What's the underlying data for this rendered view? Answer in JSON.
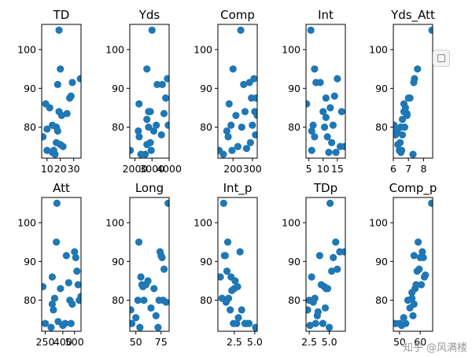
{
  "colors": {
    "marker": "#1f77b4",
    "axis": "#000000",
    "background": "#ffffff"
  },
  "watermark": {
    "text": "知乎 @风满楼",
    "icon": "zhihu-copy-icon"
  },
  "chart_data": [
    {
      "type": "scatter",
      "title": "TD",
      "xlabel": "",
      "ylabel": "",
      "xlim": [
        6.0,
        35.5
      ],
      "ylim": [
        72.0,
        106.5
      ],
      "xticks": [
        10,
        20,
        30
      ],
      "xtick_labels": [
        "10",
        "20",
        "30"
      ],
      "yticks": [
        80,
        90,
        100
      ],
      "ytick_labels": [
        "80",
        "90",
        "100"
      ],
      "x": [
        7,
        9,
        10,
        10,
        12,
        14,
        14,
        15,
        16,
        17,
        17,
        18,
        18,
        19,
        19,
        20,
        20,
        21,
        22,
        25,
        27,
        28,
        29,
        35
      ],
      "y": [
        77.5,
        86,
        74,
        79.5,
        85,
        73.5,
        80.5,
        74,
        73,
        80,
        76,
        91,
        79,
        105,
        84,
        95,
        75.5,
        83,
        75,
        83.5,
        87.5,
        88,
        91.5,
        92.5
      ]
    },
    {
      "type": "scatter",
      "title": "Yds",
      "xlabel": "",
      "ylabel": "",
      "xlim": [
        1700,
        4000
      ],
      "ylim": [
        72.0,
        106.5
      ],
      "xticks": [
        2000,
        3000,
        4000
      ],
      "xtick_labels": [
        "2000",
        "3000",
        "4000"
      ],
      "yticks": [
        80,
        90,
        100
      ],
      "ytick_labels": [
        "80",
        "90",
        "100"
      ],
      "x": [
        1730,
        2240,
        2200,
        2350,
        2250,
        2600,
        2700,
        2700,
        2800,
        2900,
        2950,
        3000,
        3250,
        3300,
        3550,
        3700,
        3800,
        3900,
        3950,
        2900,
        2700,
        2800,
        3600,
        3100
      ],
      "y": [
        74,
        86,
        79,
        73,
        77.5,
        73,
        75.5,
        95,
        80,
        84,
        74,
        105,
        80.5,
        91,
        78,
        83.5,
        87.5,
        92.5,
        80.5,
        76,
        82,
        84,
        91,
        79
      ]
    },
    {
      "type": "scatter",
      "title": "Comp",
      "xlabel": "",
      "ylabel": "",
      "xlim": [
        122,
        325
      ],
      "ylim": [
        72.0,
        106.5
      ],
      "xticks": [
        200,
        300
      ],
      "xtick_labels": [
        "200",
        "300"
      ],
      "yticks": [
        80,
        90,
        100
      ],
      "ytick_labels": [
        "80",
        "90",
        "100"
      ],
      "x": [
        128,
        150,
        168,
        175,
        180,
        190,
        195,
        200,
        215,
        225,
        240,
        255,
        262,
        270,
        285,
        295,
        300,
        308,
        312,
        316,
        320,
        325,
        245,
        290
      ],
      "y": [
        74,
        73,
        79,
        77.5,
        86,
        80.5,
        74,
        95,
        83,
        75,
        105,
        91,
        84,
        74.5,
        91.5,
        87.5,
        80.5,
        92.5,
        84,
        78,
        87.5,
        83,
        80,
        76
      ]
    },
    {
      "type": "scatter",
      "title": "Int",
      "xlabel": "",
      "ylabel": "",
      "xlim": [
        4.0,
        17.8
      ],
      "ylim": [
        72.0,
        106.5
      ],
      "xticks": [
        5,
        10,
        15
      ],
      "xtick_labels": [
        "5",
        "10",
        "15"
      ],
      "yticks": [
        80,
        90,
        100
      ],
      "ytick_labels": [
        "80",
        "90",
        "100"
      ],
      "x": [
        4.2,
        5.7,
        6,
        6,
        6.5,
        7,
        7,
        7.5,
        9,
        10,
        10.5,
        11,
        11,
        11.5,
        12,
        13,
        13.5,
        14,
        14.5,
        15,
        16,
        16.5,
        17.5,
        12.5
      ],
      "y": [
        86,
        105,
        74,
        79,
        80.5,
        95,
        77.5,
        91.5,
        91.5,
        84,
        80,
        87.5,
        82.5,
        77.5,
        73.5,
        76,
        80.5,
        88,
        73.5,
        92.5,
        75,
        84,
        75,
        85
      ]
    },
    {
      "type": "scatter",
      "title": "Yds_Att",
      "xlabel": "",
      "ylabel": "",
      "xlim": [
        6.0,
        8.6
      ],
      "ylim": [
        72.0,
        106.5
      ],
      "xticks": [
        6,
        7,
        8
      ],
      "xtick_labels": [
        "6",
        "7",
        "8"
      ],
      "yticks": [
        80,
        90,
        100
      ],
      "ytick_labels": [
        "80",
        "90",
        "100"
      ],
      "x": [
        6.05,
        6.15,
        6.25,
        6.3,
        6.4,
        6.5,
        6.5,
        6.6,
        6.6,
        6.7,
        6.7,
        6.75,
        6.8,
        6.9,
        7.0,
        7.1,
        7.3,
        7.35,
        7.4,
        7.6,
        8.55,
        6.9,
        6.45,
        6.55
      ],
      "y": [
        80.5,
        78,
        79,
        75.5,
        74,
        73.5,
        80,
        78,
        82,
        84,
        86,
        80,
        85,
        83,
        87.5,
        87.5,
        73,
        91.5,
        92.5,
        95,
        105,
        83.5,
        76,
        74
      ]
    },
    {
      "type": "scatter",
      "title": "Att",
      "xlabel": "",
      "ylabel": "",
      "xlim": [
        220,
        555
      ],
      "ylim": [
        72.0,
        106.5
      ],
      "xticks": [
        250,
        400,
        500
      ],
      "xtick_labels": [
        "250",
        "400",
        "500"
      ],
      "yticks": [
        80,
        90,
        100
      ],
      "ytick_labels": [
        "80",
        "90",
        "100"
      ],
      "x": [
        230,
        250,
        300,
        310,
        310,
        320,
        330,
        345,
        350,
        360,
        380,
        400,
        420,
        430,
        450,
        460,
        470,
        500,
        510,
        520,
        530,
        540,
        555,
        480
      ],
      "y": [
        83.5,
        74,
        73,
        86,
        79,
        77.5,
        80.5,
        95,
        105,
        74.5,
        83,
        73.5,
        74,
        91.5,
        84.5,
        80,
        74,
        92.5,
        91,
        87.5,
        84,
        80,
        81,
        79
      ]
    },
    {
      "type": "scatter",
      "title": "Long",
      "xlabel": "",
      "ylabel": "",
      "xlim": [
        44,
        83
      ],
      "ylim": [
        72.0,
        106.5
      ],
      "xticks": [
        50,
        75
      ],
      "xtick_labels": [
        "50",
        "75"
      ],
      "yticks": [
        80,
        90,
        100
      ],
      "ytick_labels": [
        "80",
        "90",
        "100"
      ],
      "x": [
        45,
        46,
        50,
        52,
        53,
        54,
        55,
        56,
        57,
        58,
        60,
        62,
        65,
        70,
        72,
        73,
        74,
        75,
        76,
        77,
        78,
        80,
        82,
        68
      ],
      "y": [
        77.5,
        74,
        75.5,
        80,
        95,
        73,
        86,
        84,
        83.5,
        80,
        84,
        85,
        78,
        76,
        73,
        80,
        92.5,
        91.5,
        91,
        80,
        88,
        79.5,
        105,
        83
      ]
    },
    {
      "type": "scatter",
      "title": "Int_p",
      "xlabel": "",
      "ylabel": "",
      "xlim": [
        0.5,
        5.3
      ],
      "ylim": [
        72.0,
        106.5
      ],
      "xticks": [
        2.5,
        5.0
      ],
      "xtick_labels": [
        "2.5",
        "5.0"
      ],
      "yticks": [
        80,
        90,
        100
      ],
      "ytick_labels": [
        "80",
        "90",
        "100"
      ],
      "x": [
        0.8,
        1.0,
        1.2,
        1.3,
        1.4,
        1.5,
        1.7,
        1.8,
        2.0,
        2.2,
        2.4,
        2.5,
        2.6,
        2.8,
        3.0,
        3.2,
        3.4,
        3.8,
        4.0,
        4.3,
        5.1,
        2.9,
        1.6,
        2.1
      ],
      "y": [
        86,
        80.5,
        105,
        91.5,
        91.5,
        79.5,
        95,
        80.5,
        77.5,
        82.5,
        74,
        83,
        85,
        74,
        75.5,
        92.5,
        77.5,
        74,
        74,
        74,
        73,
        83.5,
        87.5,
        86
      ]
    },
    {
      "type": "scatter",
      "title": "TDp",
      "xlabel": "",
      "ylabel": "",
      "xlim": [
        2.1,
        7.0
      ],
      "ylim": [
        72.0,
        106.5
      ],
      "xticks": [
        2.5,
        5.0
      ],
      "xtick_labels": [
        "2.5",
        "5.0"
      ],
      "yticks": [
        80,
        90,
        100
      ],
      "ytick_labels": [
        "80",
        "90",
        "100"
      ],
      "x": [
        2.3,
        2.5,
        2.6,
        2.8,
        3.0,
        3.2,
        3.3,
        3.5,
        3.8,
        4.0,
        4.2,
        4.4,
        4.6,
        4.8,
        5.0,
        5.1,
        5.3,
        5.5,
        5.8,
        6.0,
        6.3,
        6.9,
        4.5,
        3.6
      ],
      "y": [
        77.5,
        80,
        73.5,
        86,
        79.5,
        80.5,
        74,
        76,
        91.5,
        84,
        74,
        83.5,
        83,
        83,
        73,
        105,
        87.5,
        91,
        95,
        88,
        92.5,
        92.5,
        78,
        77
      ]
    },
    {
      "type": "scatter",
      "title": "Comp_p",
      "xlabel": "",
      "ylabel": "",
      "xlim": [
        47,
        66
      ],
      "ylim": [
        72.0,
        106.5
      ],
      "xticks": [
        50,
        60
      ],
      "xtick_labels": [
        "50",
        "60"
      ],
      "yticks": [
        80,
        90,
        100
      ],
      "ytick_labels": [
        "80",
        "90",
        "100"
      ],
      "x": [
        48,
        50,
        51,
        52,
        53,
        54,
        55,
        56,
        56.5,
        57,
        57.5,
        58,
        58.5,
        59,
        59.5,
        60,
        60.5,
        61,
        61.5,
        62,
        62.5,
        65.5,
        57,
        56
      ],
      "y": [
        74,
        74,
        73.5,
        75.5,
        74,
        80,
        78,
        80.5,
        76,
        91.5,
        83,
        84,
        87.5,
        95,
        88,
        91,
        84,
        92.5,
        91,
        86,
        86.5,
        105,
        79,
        82
      ]
    }
  ]
}
